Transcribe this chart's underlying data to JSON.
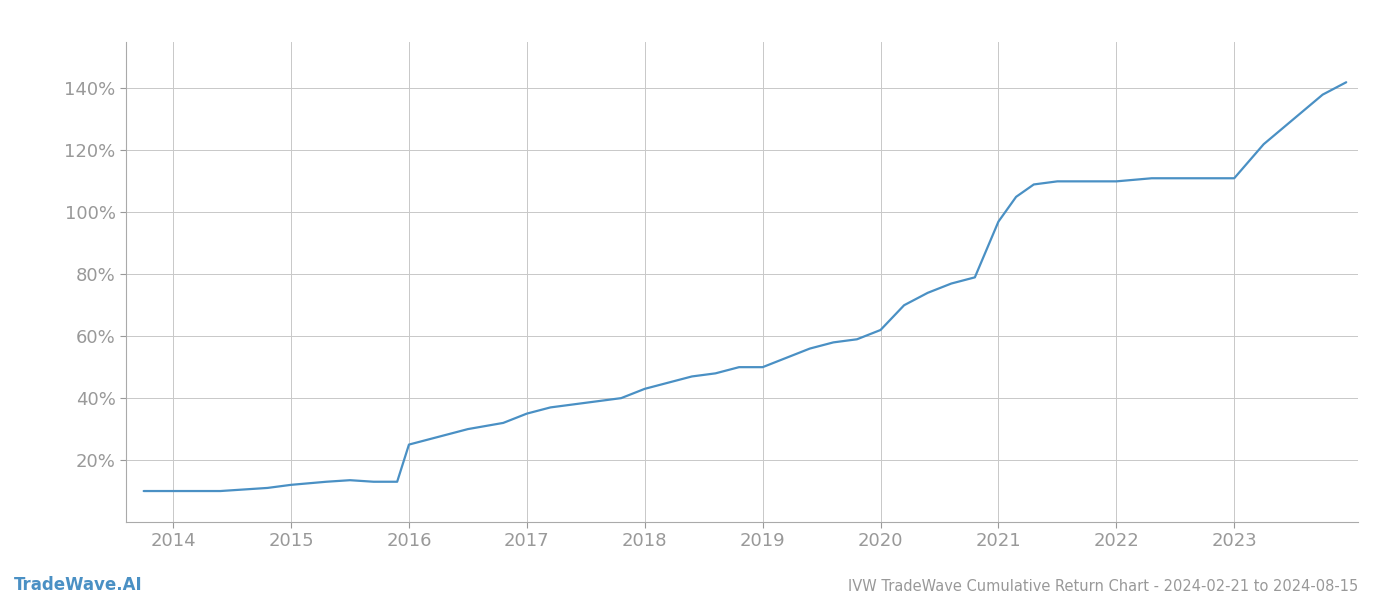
{
  "title": "IVW TradeWave Cumulative Return Chart - 2024-02-21 to 2024-08-15",
  "watermark": "TradeWave.AI",
  "line_color": "#4a90c4",
  "background_color": "#ffffff",
  "grid_color": "#c8c8c8",
  "x_years": [
    2014,
    2015,
    2016,
    2017,
    2018,
    2019,
    2020,
    2021,
    2022,
    2023
  ],
  "x_values": [
    2013.75,
    2014.0,
    2014.2,
    2014.4,
    2014.6,
    2014.8,
    2015.0,
    2015.15,
    2015.3,
    2015.5,
    2015.7,
    2015.9,
    2016.0,
    2016.2,
    2016.5,
    2016.8,
    2017.0,
    2017.2,
    2017.4,
    2017.6,
    2017.8,
    2018.0,
    2018.2,
    2018.4,
    2018.6,
    2018.8,
    2019.0,
    2019.2,
    2019.4,
    2019.6,
    2019.8,
    2020.0,
    2020.2,
    2020.4,
    2020.6,
    2020.8,
    2021.0,
    2021.15,
    2021.3,
    2021.5,
    2021.8,
    2022.0,
    2022.3,
    2022.6,
    2022.9,
    2023.0,
    2023.25,
    2023.5,
    2023.75,
    2023.95
  ],
  "y_values": [
    10,
    10,
    10,
    10,
    10.5,
    11,
    12,
    12.5,
    13,
    13.5,
    13,
    13,
    25,
    27,
    30,
    32,
    35,
    37,
    38,
    39,
    40,
    43,
    45,
    47,
    48,
    50,
    50,
    53,
    56,
    58,
    59,
    62,
    70,
    74,
    77,
    79,
    97,
    105,
    109,
    110,
    110,
    110,
    111,
    111,
    111,
    111,
    122,
    130,
    138,
    142
  ],
  "ylim": [
    0,
    155
  ],
  "xlim": [
    2013.6,
    2024.05
  ],
  "yticks": [
    20,
    40,
    60,
    80,
    100,
    120,
    140
  ],
  "title_fontsize": 10.5,
  "watermark_fontsize": 12,
  "tick_fontsize": 13,
  "tick_color": "#999999",
  "spine_color": "#aaaaaa",
  "line_width": 1.6
}
